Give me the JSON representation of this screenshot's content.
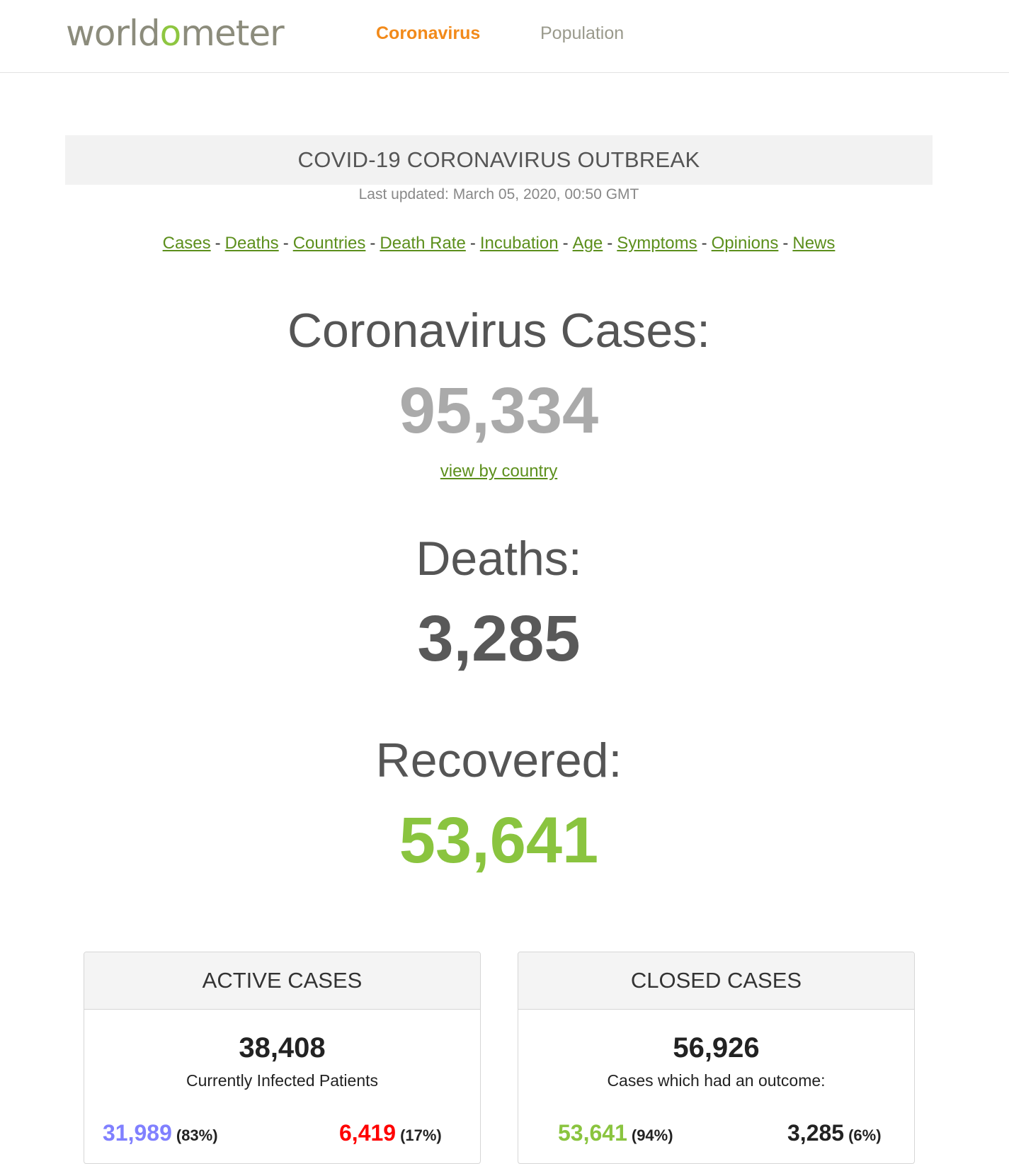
{
  "navbar": {
    "logo_prefix": "world",
    "logo_o": "o",
    "logo_suffix": "meter",
    "links": [
      "Coronavirus",
      "Population"
    ]
  },
  "banner": {
    "title": "COVID-19 CORONAVIRUS OUTBREAK",
    "last_updated": "Last updated: March 05, 2020, 00:50 GMT"
  },
  "sub_nav": [
    "Cases",
    "Deaths",
    "Countries",
    "Death Rate",
    "Incubation",
    "Age",
    "Symptoms",
    "Opinions",
    "News"
  ],
  "stats": {
    "cases_label": "Coronavirus Cases:",
    "cases_value": "95,334",
    "view_by_country": "view by country",
    "deaths_label": "Deaths:",
    "deaths_value": "3,285",
    "recovered_label": "Recovered:",
    "recovered_value": "53,641"
  },
  "active_cases": {
    "title": "ACTIVE CASES",
    "number": "38,408",
    "caption": "Currently Infected Patients",
    "mild_value": "31,989",
    "mild_pct": "(83%)",
    "serious_value": "6,419",
    "serious_pct": "(17%)"
  },
  "closed_cases": {
    "title": "CLOSED CASES",
    "number": "56,926",
    "caption": "Cases which had an outcome:",
    "recovered_value": "53,641",
    "recovered_pct": "(94%)",
    "deaths_value": "3,285",
    "deaths_pct": "(6%)"
  },
  "colors": {
    "accent_orange": "#f28a1a",
    "link_green": "#5c8f1c",
    "recovered_green": "#8ac43f",
    "mild_blue": "#8080ff",
    "serious_red": "#ff0000"
  }
}
